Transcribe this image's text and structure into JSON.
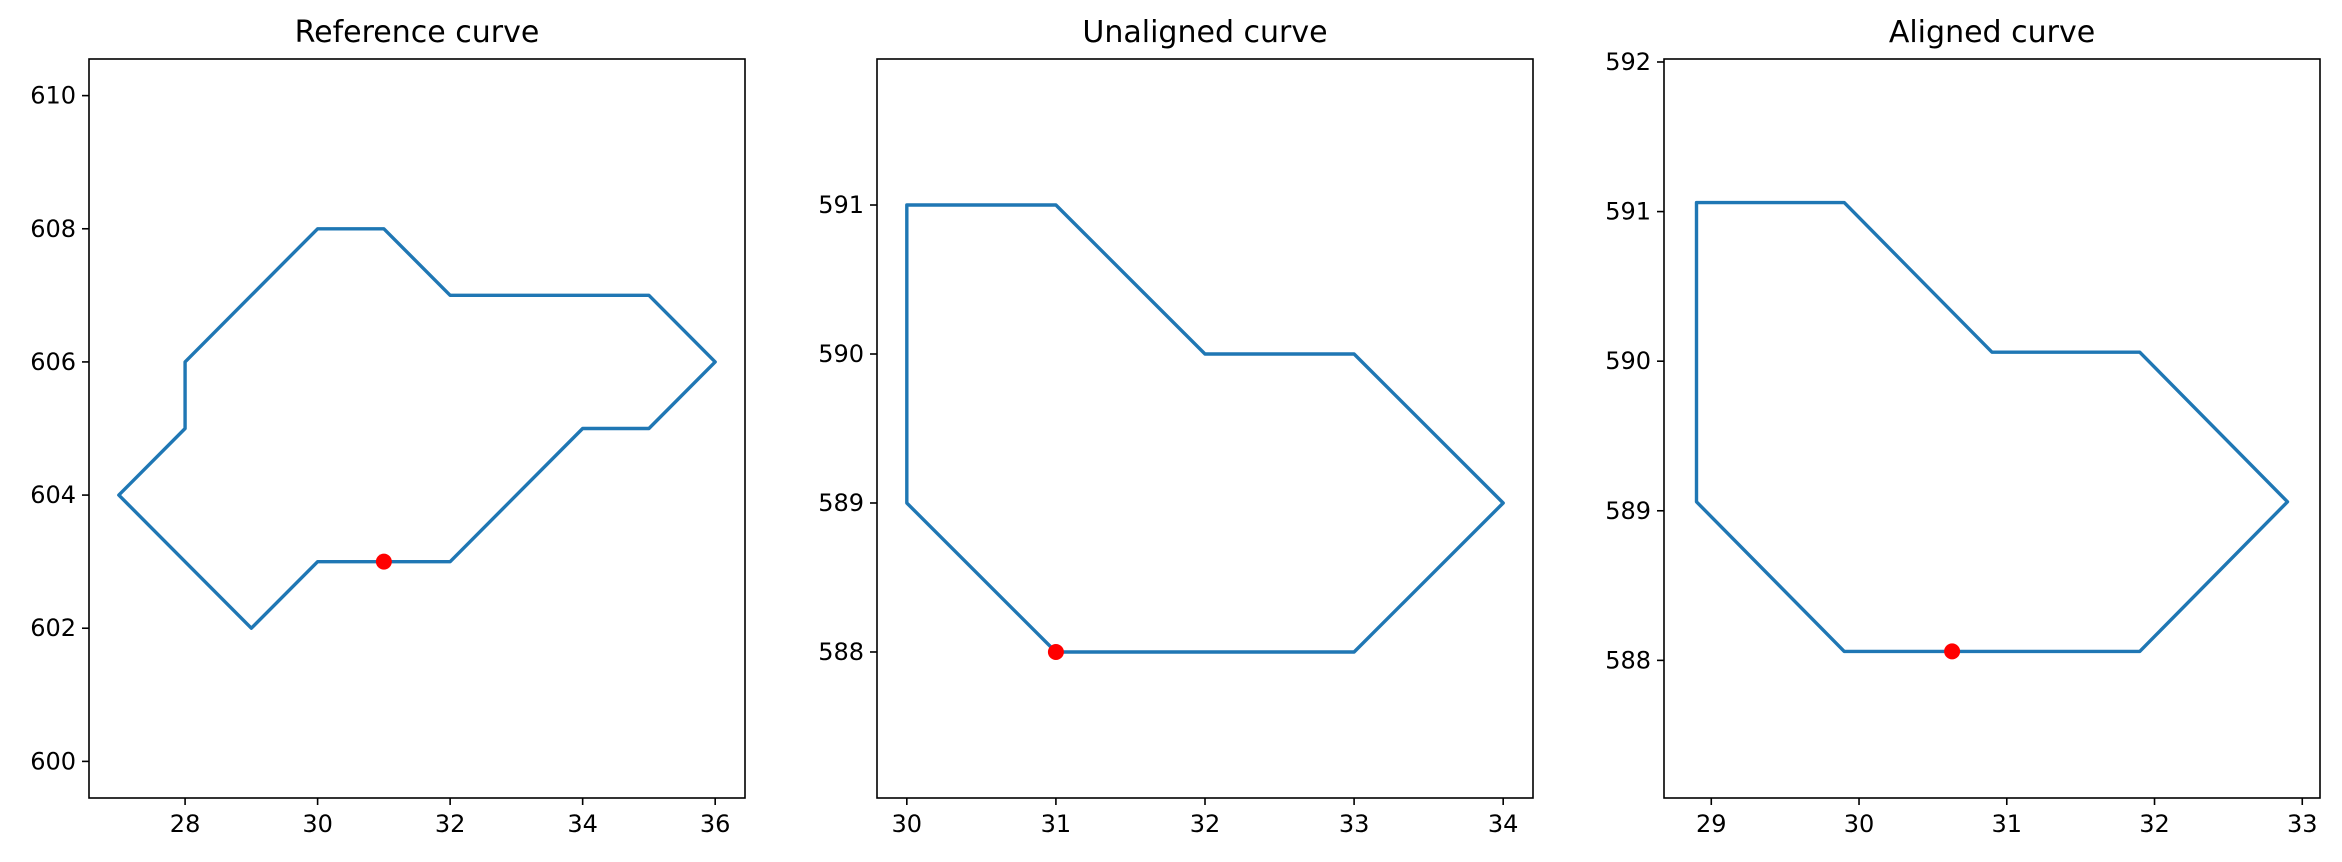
{
  "chart_data": [
    {
      "type": "line",
      "title": "Reference curve",
      "xlim": [
        26.55,
        36.45
      ],
      "ylim": [
        599.45,
        610.55
      ],
      "xticks": [
        28,
        30,
        32,
        34,
        36
      ],
      "yticks": [
        600,
        602,
        604,
        606,
        608,
        610
      ],
      "grid": false,
      "series": [
        {
          "color": "#1f77b4",
          "x": [
            31,
            32,
            33,
            34,
            35,
            36,
            35,
            32,
            31,
            30,
            29,
            28,
            28,
            27,
            28,
            29,
            30,
            31
          ],
          "y": [
            603,
            603,
            604,
            605,
            605,
            606,
            607,
            607,
            608,
            608,
            607,
            606,
            605,
            604,
            603,
            602,
            603,
            603
          ]
        }
      ],
      "marker": {
        "x": 31,
        "y": 603,
        "color": "#ff0000"
      }
    },
    {
      "type": "line",
      "title": "Unaligned curve",
      "xlim": [
        29.8,
        34.2
      ],
      "ylim": [
        587.02,
        591.98
      ],
      "xticks": [
        30,
        31,
        32,
        33,
        34
      ],
      "yticks": [
        588,
        589,
        590,
        591
      ],
      "grid": false,
      "series": [
        {
          "color": "#1f77b4",
          "x": [
            31,
            33,
            34,
            33,
            32,
            31,
            30,
            30,
            31
          ],
          "y": [
            588,
            588,
            589,
            590,
            590,
            591,
            591,
            589,
            588
          ]
        }
      ],
      "marker": {
        "x": 31,
        "y": 588,
        "color": "#ff0000"
      }
    },
    {
      "type": "line",
      "title": "Aligned curve",
      "xlim": [
        28.68,
        33.12
      ],
      "ylim": [
        587.08,
        592.02
      ],
      "xticks": [
        29,
        30,
        31,
        32,
        33
      ],
      "yticks": [
        588,
        589,
        590,
        591,
        592
      ],
      "grid": false,
      "series": [
        {
          "color": "#1f77b4",
          "x": [
            30.63,
            31.9,
            32.9,
            31.9,
            30.9,
            29.9,
            28.9,
            28.9,
            29.9,
            30.63
          ],
          "y": [
            588.06,
            588.06,
            589.06,
            590.06,
            590.06,
            591.06,
            591.06,
            589.06,
            588.06,
            588.06
          ]
        }
      ],
      "marker": {
        "x": 30.63,
        "y": 588.06,
        "color": "#ff0000"
      }
    }
  ]
}
